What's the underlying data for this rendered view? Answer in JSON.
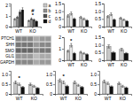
{
  "chart_data": [
    {
      "type": "bar",
      "categories": [
        "WT",
        "KO"
      ],
      "series": [
        {
          "name": "a",
          "color": "#c8c8c8",
          "values": [
            0.7,
            0.55
          ],
          "errors": [
            0.08,
            0.07
          ]
        },
        {
          "name": "b",
          "color": "#909090",
          "values": [
            0.9,
            0.75
          ],
          "errors": [
            0.1,
            0.09
          ]
        },
        {
          "name": "c",
          "color": "#505050",
          "values": [
            1.4,
            0.65
          ],
          "errors": [
            0.18,
            0.08
          ]
        },
        {
          "name": "d",
          "color": "#101010",
          "values": [
            1.6,
            0.5
          ],
          "errors": [
            0.2,
            0.07
          ]
        }
      ],
      "ylim": [
        0,
        2.2
      ],
      "yticks": [
        0,
        1,
        2
      ],
      "legend": "right",
      "annotations": [
        {
          "text": "*",
          "x": "KO"
        },
        {
          "text": "#",
          "x": "KO"
        }
      ]
    },
    {
      "type": "bar",
      "categories": [
        "WT",
        "KO"
      ],
      "series": [
        {
          "color": "#c8c8c8",
          "values": [
            0.7,
            0.6
          ],
          "errors": [
            0.08,
            0.07
          ]
        },
        {
          "color": "#e8e8e8",
          "values": [
            0.85,
            0.5
          ],
          "errors": [
            0.1,
            0.06
          ]
        },
        {
          "color": "#101010",
          "values": [
            0.5,
            0.4
          ],
          "errors": [
            0.06,
            0.05
          ]
        }
      ],
      "ylim": [
        0,
        1.5
      ],
      "yticks": [
        0,
        0.5,
        {
          "value": 1.0,
          "label": "1.0"
        },
        1.5
      ]
    },
    {
      "type": "bar",
      "categories": [
        "WT",
        "KO"
      ],
      "series": [
        {
          "color": "#c8c8c8",
          "values": [
            0.65,
            0.55
          ],
          "errors": [
            0.07,
            0.06
          ]
        },
        {
          "color": "#e8e8e8",
          "values": [
            0.8,
            0.45
          ],
          "errors": [
            0.09,
            0.05
          ]
        },
        {
          "color": "#101010",
          "values": [
            0.45,
            0.35
          ],
          "errors": [
            0.05,
            0.04
          ]
        }
      ],
      "ylim": [
        0,
        1.5
      ],
      "yticks": [
        0,
        0.5,
        {
          "value": 1.0,
          "label": "1.0"
        },
        1.5
      ]
    },
    {
      "type": "blot",
      "categories": [
        "PTCH1",
        "SHH",
        "SMO",
        "GLI1",
        "GAPDH"
      ],
      "colors": [
        [
          "#888888",
          "#888888",
          "#888888",
          "#aaaaaa",
          "#999999",
          "#999999"
        ],
        [
          "#777777",
          "#777777",
          "#777777",
          "#999999",
          "#888888",
          "#888888"
        ],
        [
          "#666666",
          "#666666",
          "#666666",
          "#888888",
          "#777777",
          "#777777"
        ],
        [
          "#999999",
          "#999999",
          "#999999",
          "#bbbbbb",
          "#aaaaaa",
          "#aaaaaa"
        ],
        [
          "#888888",
          "#888888",
          "#888888",
          "#aaaaaa",
          "#999999",
          "#999999"
        ]
      ]
    },
    {
      "type": "bar",
      "categories": [
        "WT",
        "KO"
      ],
      "series": [
        {
          "color": "#c8c8c8",
          "values": [
            0.8,
            0.7
          ],
          "errors": [
            0.09,
            0.08
          ]
        },
        {
          "color": "#e8e8e8",
          "values": [
            1.3,
            0.6
          ],
          "errors": [
            0.15,
            0.07
          ]
        },
        {
          "color": "#101010",
          "values": [
            0.6,
            0.5
          ],
          "errors": [
            0.07,
            0.06
          ]
        }
      ],
      "ylim": [
        0,
        2.0
      ],
      "yticks": [
        0,
        1,
        2
      ],
      "annotations": [
        {
          "text": "*",
          "x": "WT"
        }
      ]
    },
    {
      "type": "bar",
      "categories": [
        "WT",
        "KO"
      ],
      "series": [
        {
          "color": "#c8c8c8",
          "values": [
            0.9,
            0.7
          ],
          "errors": [
            0.1,
            0.08
          ]
        },
        {
          "color": "#101010",
          "values": [
            0.5,
            0.45
          ],
          "errors": [
            0.06,
            0.05
          ]
        }
      ],
      "ylim": [
        0,
        1.5
      ],
      "yticks": [
        0,
        0.5,
        {
          "value": 1.0,
          "label": "1.0"
        },
        1.5
      ]
    },
    {
      "type": "bar",
      "categories": [
        "WT",
        "KO"
      ],
      "series": [
        {
          "color": "#c8c8c8",
          "values": [
            0.6,
            0.5
          ],
          "errors": [
            0.07,
            0.06
          ]
        },
        {
          "color": "#e8e8e8",
          "values": [
            0.5,
            0.4
          ],
          "errors": [
            0.06,
            0.05
          ]
        },
        {
          "color": "#101010",
          "values": [
            0.35,
            0.3
          ],
          "errors": [
            0.04,
            0.03
          ]
        }
      ],
      "ylim": [
        0,
        1.2
      ],
      "yticks": [
        0,
        0.5,
        {
          "value": 1.0,
          "label": "1.0"
        }
      ],
      "annotations": [
        {
          "text": "*",
          "x": "WT"
        }
      ]
    },
    {
      "type": "bar",
      "categories": [
        "WT",
        "KO"
      ],
      "series": [
        {
          "color": "#c8c8c8",
          "values": [
            0.7,
            0.6
          ],
          "errors": [
            0.08,
            0.07
          ]
        },
        {
          "color": "#e8e8e8",
          "values": [
            0.6,
            0.45
          ],
          "errors": [
            0.07,
            0.05
          ]
        },
        {
          "color": "#101010",
          "values": [
            0.4,
            0.35
          ],
          "errors": [
            0.05,
            0.04
          ]
        }
      ],
      "ylim": [
        0,
        1.2
      ],
      "yticks": [
        0,
        0.5,
        {
          "value": 1.0,
          "label": "1.0"
        }
      ],
      "annotations": [
        {
          "text": "*",
          "x": "WT"
        }
      ]
    },
    {
      "type": "bar",
      "categories": [
        "WT",
        "KO"
      ],
      "series": [
        {
          "color": "#c8c8c8",
          "values": [
            0.65,
            0.55
          ],
          "errors": [
            0.07,
            0.06
          ]
        },
        {
          "color": "#e8e8e8",
          "values": [
            0.55,
            0.4
          ],
          "errors": [
            0.06,
            0.05
          ]
        },
        {
          "color": "#101010",
          "values": [
            0.38,
            0.32
          ],
          "errors": [
            0.04,
            0.04
          ]
        }
      ],
      "ylim": [
        0,
        1.2
      ],
      "yticks": [
        0,
        0.5,
        {
          "value": 1.0,
          "label": "1.0"
        }
      ]
    }
  ]
}
